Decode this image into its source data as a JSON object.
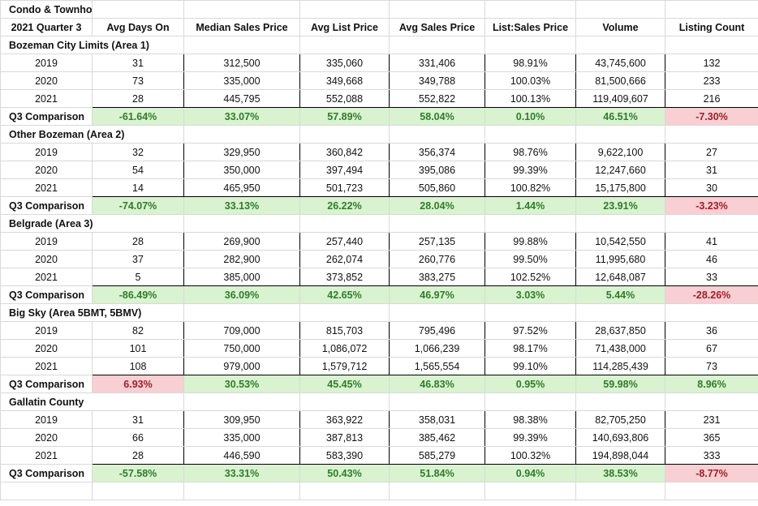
{
  "sheet": {
    "title": "Condo & Townhome",
    "headers": [
      "2021 Quarter 3",
      "Avg Days On",
      "Median Sales Price",
      "Avg List Price",
      "Avg Sales Price",
      "List:Sales Price",
      "Volume",
      "Listing Count"
    ],
    "sections": [
      {
        "name": "Bozeman City Limits (Area 1)",
        "rows": [
          {
            "year": "2019",
            "values": [
              "31",
              "312,500",
              "335,060",
              "331,406",
              "98.91%",
              "43,745,600",
              "132"
            ]
          },
          {
            "year": "2020",
            "values": [
              "73",
              "335,000",
              "349,668",
              "349,788",
              "100.03%",
              "81,500,666",
              "233"
            ]
          },
          {
            "year": "2021",
            "values": [
              "28",
              "445,795",
              "552,088",
              "552,822",
              "100.13%",
              "119,409,607",
              "216"
            ]
          }
        ],
        "comparison": {
          "label": "Q3 Comparison",
          "values": [
            "-61.64%",
            "33.07%",
            "57.89%",
            "58.04%",
            "0.10%",
            "46.51%",
            "-7.30%"
          ],
          "tones": [
            "g",
            "g",
            "g",
            "g",
            "g",
            "g",
            "r"
          ]
        }
      },
      {
        "name": "Other Bozeman (Area 2)",
        "rows": [
          {
            "year": "2019",
            "values": [
              "32",
              "329,950",
              "360,842",
              "356,374",
              "98.76%",
              "9,622,100",
              "27"
            ]
          },
          {
            "year": "2020",
            "values": [
              "54",
              "350,000",
              "397,494",
              "395,086",
              "99.39%",
              "12,247,660",
              "31"
            ]
          },
          {
            "year": "2021",
            "values": [
              "14",
              "465,950",
              "501,723",
              "505,860",
              "100.82%",
              "15,175,800",
              "30"
            ]
          }
        ],
        "comparison": {
          "label": "Q3 Comparison",
          "values": [
            "-74.07%",
            "33.13%",
            "26.22%",
            "28.04%",
            "1.44%",
            "23.91%",
            "-3.23%"
          ],
          "tones": [
            "g",
            "g",
            "g",
            "g",
            "g",
            "g",
            "r"
          ]
        }
      },
      {
        "name": "Belgrade (Area 3)",
        "rows": [
          {
            "year": "2019",
            "values": [
              "28",
              "269,900",
              "257,440",
              "257,135",
              "99.88%",
              "10,542,550",
              "41"
            ]
          },
          {
            "year": "2020",
            "values": [
              "37",
              "282,900",
              "262,074",
              "260,776",
              "99.50%",
              "11,995,680",
              "46"
            ]
          },
          {
            "year": "2021",
            "values": [
              "5",
              "385,000",
              "373,852",
              "383,275",
              "102.52%",
              "12,648,087",
              "33"
            ]
          }
        ],
        "comparison": {
          "label": "Q3 Comparison",
          "values": [
            "-86.49%",
            "36.09%",
            "42.65%",
            "46.97%",
            "3.03%",
            "5.44%",
            "-28.26%"
          ],
          "tones": [
            "g",
            "g",
            "g",
            "g",
            "g",
            "g",
            "r"
          ]
        }
      },
      {
        "name": "Big Sky (Area 5BMT, 5BMV)",
        "rows": [
          {
            "year": "2019",
            "values": [
              "82",
              "709,000",
              "815,703",
              "795,496",
              "97.52%",
              "28,637,850",
              "36"
            ]
          },
          {
            "year": "2020",
            "values": [
              "101",
              "750,000",
              "1,086,072",
              "1,066,239",
              "98.17%",
              "71,438,000",
              "67"
            ]
          },
          {
            "year": "2021",
            "values": [
              "108",
              "979,000",
              "1,579,712",
              "1,565,554",
              "99.10%",
              "114,285,439",
              "73"
            ]
          }
        ],
        "comparison": {
          "label": "Q3 Comparison",
          "values": [
            "6.93%",
            "30.53%",
            "45.45%",
            "46.83%",
            "0.95%",
            "59.98%",
            "8.96%"
          ],
          "tones": [
            "r",
            "g",
            "g",
            "g",
            "g",
            "g",
            "g"
          ]
        }
      },
      {
        "name": "Gallatin County",
        "rows": [
          {
            "year": "2019",
            "values": [
              "31",
              "309,950",
              "363,922",
              "358,031",
              "98.38%",
              "82,705,250",
              "231"
            ]
          },
          {
            "year": "2020",
            "values": [
              "66",
              "335,000",
              "387,813",
              "385,462",
              "99.39%",
              "140,693,806",
              "365"
            ]
          },
          {
            "year": "2021",
            "values": [
              "28",
              "446,590",
              "583,390",
              "585,279",
              "100.32%",
              "194,898,044",
              "333"
            ]
          }
        ],
        "comparison": {
          "label": "Q3 Comparison",
          "values": [
            "-57.58%",
            "33.31%",
            "50.43%",
            "51.84%",
            "0.94%",
            "38.53%",
            "-8.77%"
          ],
          "tones": [
            "g",
            "g",
            "g",
            "g",
            "g",
            "g",
            "r"
          ]
        }
      }
    ]
  }
}
